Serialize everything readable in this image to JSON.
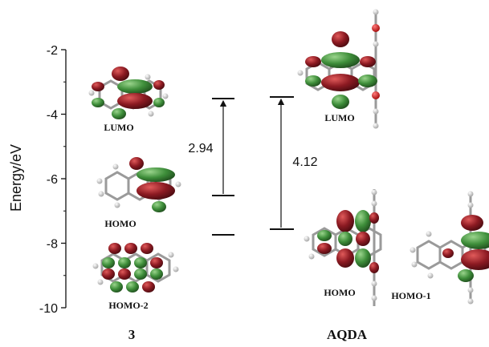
{
  "axis": {
    "label": "Energy/eV",
    "ticks": [
      "-2",
      "-4",
      "-6",
      "-8",
      "-10"
    ],
    "range": [
      -10,
      -2
    ]
  },
  "molecules": {
    "left": {
      "name": "3",
      "orbitals": {
        "lumo": "LUMO",
        "homo": "HOMO",
        "homo2": "HOMO-2"
      },
      "gap_label": "2.94"
    },
    "right": {
      "name": "AQDA",
      "orbitals": {
        "lumo": "LUMO",
        "homo": "HOMO",
        "homo1": "HOMO-1"
      },
      "gap_label": "4.12"
    }
  },
  "colors": {
    "lobe_red": "#8c1a22",
    "lobe_green": "#3e8e3a",
    "bond": "#9a9a9a",
    "atom_h": "#e8e8e8",
    "atom_o": "#d61a1a",
    "ink": "#111111"
  }
}
